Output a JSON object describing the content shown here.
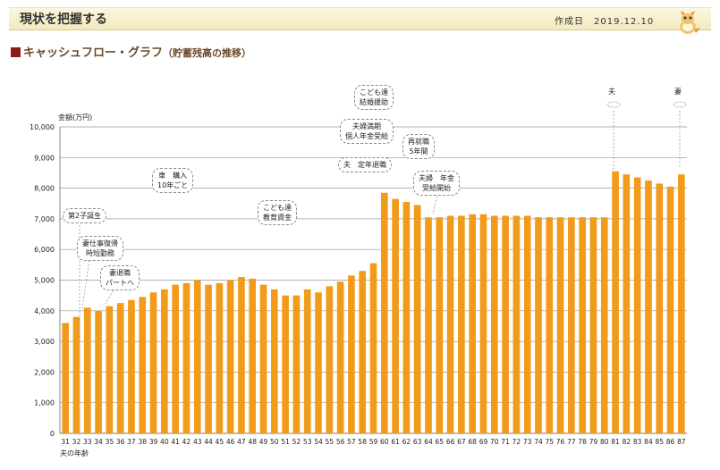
{
  "header": {
    "title": "現状を把握する",
    "date_label": "作成日",
    "date_value": "2019.12.10"
  },
  "section": {
    "title": "キャッシュフロー・グラフ",
    "subtitle": "（貯蓄残高の推移）"
  },
  "colors": {
    "bar": "#f29a1a",
    "grid": "#999999",
    "header_bg": "#f6eecb"
  },
  "chart_data": {
    "type": "bar",
    "ylabel": "金額(万円)",
    "xlabel": "夫の年齢",
    "ylim": [
      0,
      10000
    ],
    "yticks": [
      0,
      1000,
      2000,
      3000,
      4000,
      5000,
      6000,
      7000,
      8000,
      9000,
      10000
    ],
    "ytick_labels": [
      "0",
      "1,000",
      "2,000",
      "3,000",
      "4,000",
      "5,000",
      "6,000",
      "7,000",
      "8,000",
      "9,000",
      "10,000"
    ],
    "grid": true,
    "categories": [
      "31",
      "32",
      "33",
      "34",
      "35",
      "36",
      "37",
      "38",
      "39",
      "40",
      "41",
      "42",
      "43",
      "44",
      "45",
      "46",
      "47",
      "48",
      "49",
      "50",
      "51",
      "52",
      "53",
      "54",
      "55",
      "56",
      "57",
      "58",
      "59",
      "60",
      "61",
      "62",
      "63",
      "64",
      "65",
      "66",
      "67",
      "68",
      "69",
      "70",
      "71",
      "72",
      "73",
      "74",
      "75",
      "76",
      "77",
      "78",
      "79",
      "80",
      "81",
      "82",
      "83",
      "84",
      "85",
      "86",
      "87"
    ],
    "values": [
      3600,
      3800,
      4100,
      4000,
      4150,
      4250,
      4350,
      4450,
      4600,
      4700,
      4850,
      4900,
      5000,
      4850,
      4900,
      5000,
      5100,
      5050,
      4850,
      4700,
      4500,
      4500,
      4700,
      4600,
      4800,
      4950,
      5150,
      5300,
      5550,
      7850,
      7650,
      7550,
      7450,
      7050,
      7050,
      7100,
      7100,
      7150,
      7150,
      7100,
      7100,
      7100,
      7100,
      7050,
      7050,
      7050,
      7050,
      7050,
      7050,
      7050,
      8550,
      8450,
      8350,
      8250,
      8150,
      8050,
      8450
    ],
    "annotations": [
      {
        "text": "第2子誕生"
      },
      {
        "text": "妻仕事復帰\n時短勤務"
      },
      {
        "text": "妻退職\nパートへ"
      },
      {
        "text": "車　購入\n10年ごと"
      },
      {
        "text": "こども達\n教育資金"
      },
      {
        "text": "こども達\n結婚援助"
      },
      {
        "text": "夫婦満期\n個人年金受給"
      },
      {
        "text": "夫　定年退職"
      },
      {
        "text": "再就職\n5年間"
      },
      {
        "text": "夫婦　年金\n受給開始"
      },
      {
        "text": "夫"
      },
      {
        "text": "妻"
      }
    ]
  }
}
